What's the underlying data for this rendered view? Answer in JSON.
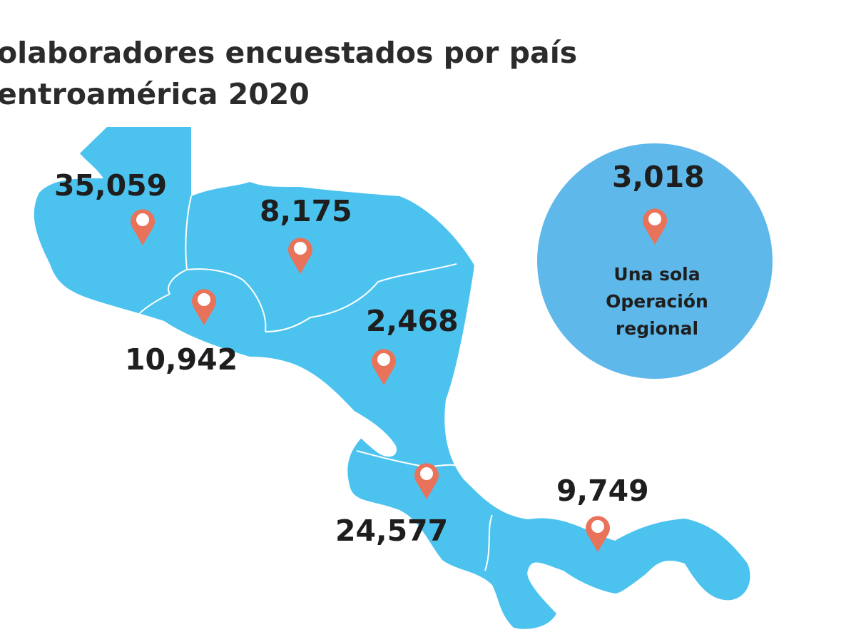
{
  "title": {
    "line1": "olaboradores encuestados por país",
    "line2": "entroamérica 2020"
  },
  "countries": [
    {
      "id": "guatemala",
      "value": "35,059"
    },
    {
      "id": "honduras",
      "value": "8,175"
    },
    {
      "id": "el-salvador",
      "value": "10,942"
    },
    {
      "id": "nicaragua",
      "value": "2,468"
    },
    {
      "id": "costa-rica",
      "value": "24,577"
    },
    {
      "id": "panama",
      "value": "9,749"
    }
  ],
  "regional": {
    "value": "3,018",
    "caption_line1": "Una sola",
    "caption_line2": "Operación",
    "caption_line3": "regional"
  },
  "colors": {
    "land": "#4cc3ef",
    "circle": "#5fb8ea",
    "pin": "#e8735a",
    "border": "#ffffff",
    "text": "#1e1e1e"
  }
}
